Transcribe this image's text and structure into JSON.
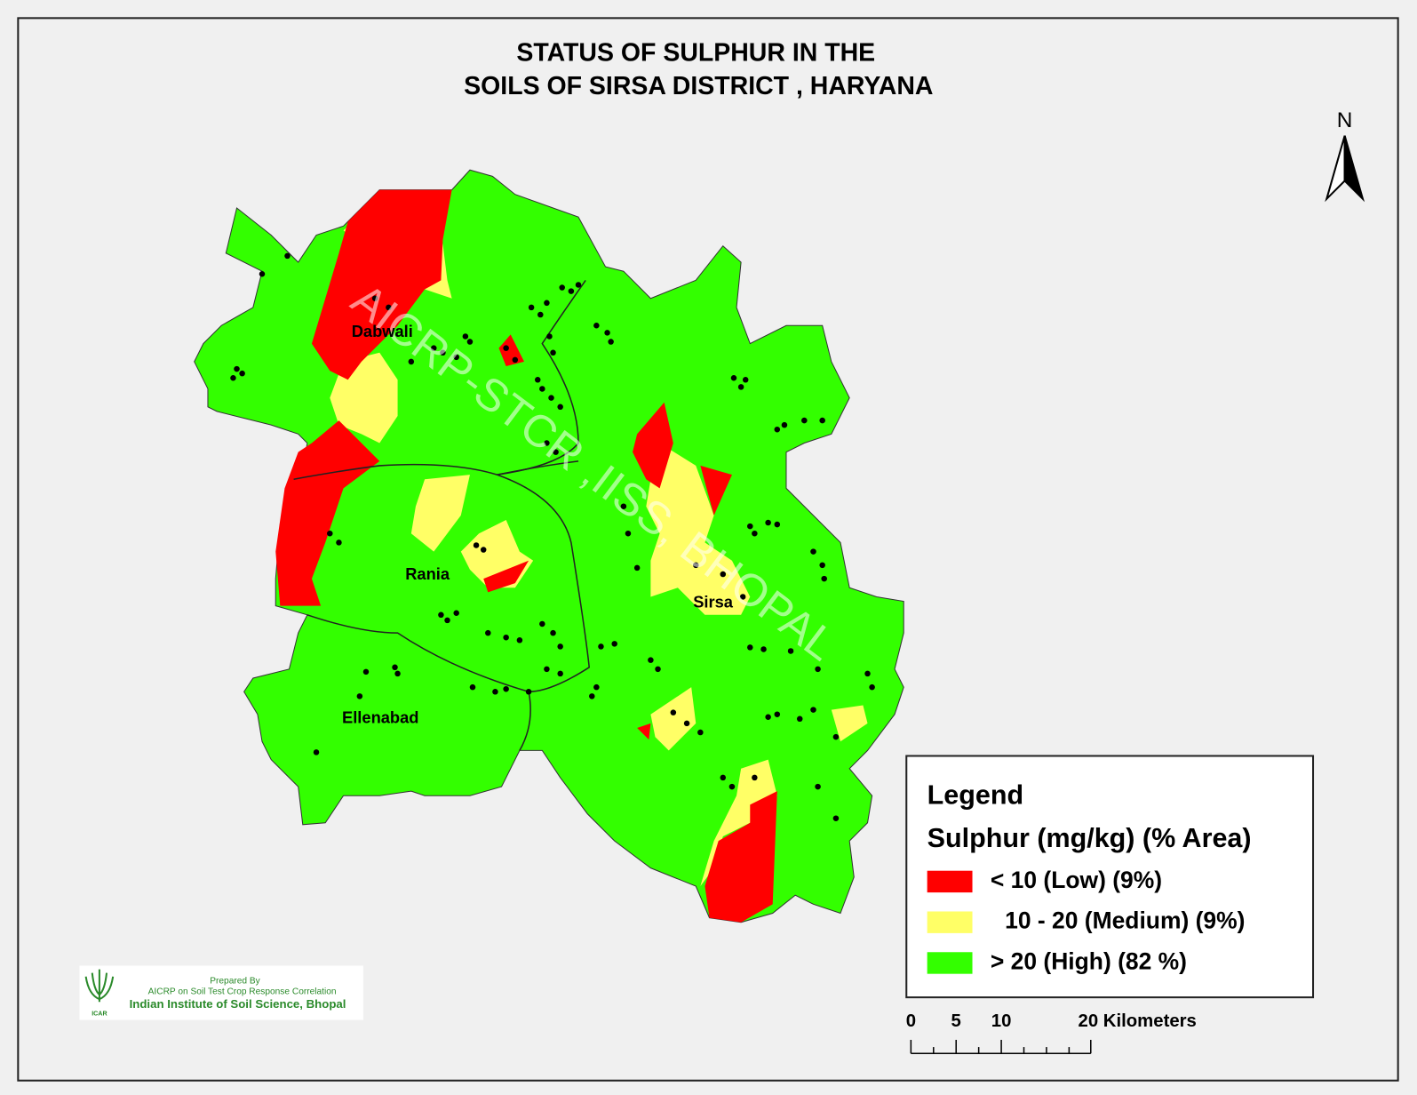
{
  "title": [
    "STATUS OF  SULPHUR   IN THE",
    "SOILS OF SIRSA DISTRICT , HARYANA"
  ],
  "north": "N",
  "watermark": "AICRP-STCR ,IISS, BHOPAL",
  "districts": [
    "Dabwali",
    "Rania",
    "Sirsa",
    "Ellenabad"
  ],
  "legend": {
    "title": "Legend",
    "subtitle": "Sulphur (mg/kg) (% Area)",
    "items": [
      {
        "label": "< 10 (Low) (9%)",
        "color": "#ff0000"
      },
      {
        "label": "10 - 20 (Medium) (9%)",
        "color": "#ffff66"
      },
      {
        "label": "> 20 (High) (82 %)",
        "color": "#33ff00"
      }
    ]
  },
  "scale": [
    "0",
    "5",
    "10",
    "20 Kilometers"
  ],
  "credit": [
    "Prepared By",
    "AICRP on Soil Test Crop Response Correlation",
    "Indian Institute of Soil Science, Bhopal",
    "ICAR"
  ]
}
